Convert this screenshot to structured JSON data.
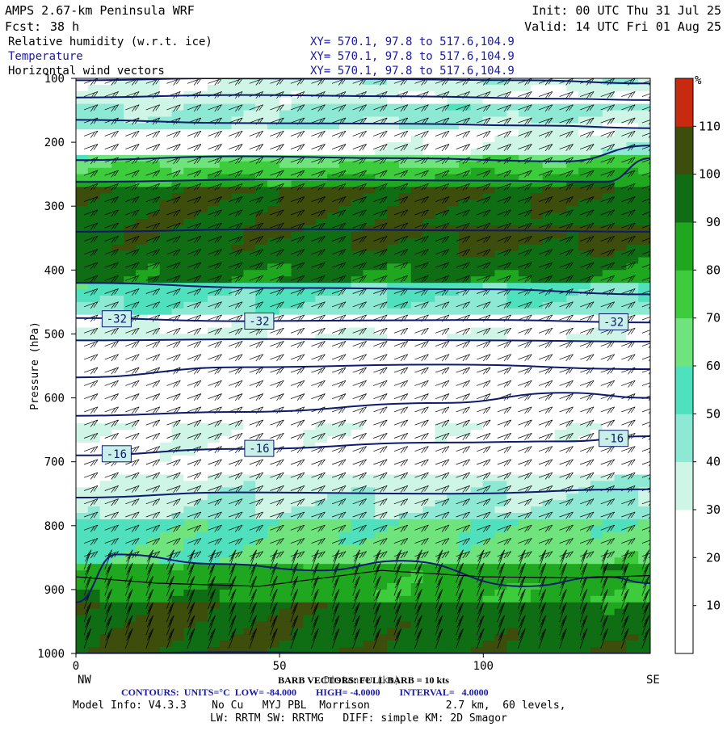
{
  "header": {
    "title": "AMPS 2.67-km Peninsula WRF",
    "fcst_label": "Fcst:",
    "fcst_value": "38 h",
    "init": "Init: 00 UTC Thu 31 Jul 25",
    "valid": "Valid: 14 UTC Fri 01 Aug 25"
  },
  "fields": [
    {
      "name": "Relative humidity (w.r.t. ice)",
      "xy": "XY= 570.1, 97.8 to 517.6,104.9",
      "color": "#000000"
    },
    {
      "name": "Temperature",
      "xy": "XY= 570.1, 97.8 to 517.6,104.9",
      "color": "#1a1aa6"
    },
    {
      "name": "Horizontal wind vectors",
      "xy": "XY= 570.1, 97.8 to 517.6,104.9",
      "color": "#000000"
    }
  ],
  "footer": {
    "left_end": "NW",
    "right_end": "SE",
    "barb_label": "BARB VECTORS: FULL BARB = 10 kts",
    "xaxis_title": "Distance (km)",
    "contours_label": "CONTOURS:  UNITS=°C  LOW= -84.000        HIGH= -4.0000        INTERVAL=   4.0000",
    "model_info": "Model Info: V4.3.3    No Cu   MYJ PBL  Morrison            2.7 km,  60 levels,",
    "physics": "LW: RRTM SW: RRTMG   DIFF: simple KM: 2D Smagor"
  },
  "colors": {
    "temperature_contour": "#0d1a6e",
    "frame": "#000000"
  },
  "chart_data": {
    "type": "heatmap",
    "title": "Relative humidity (w.r.t. ice)",
    "xlabel": "",
    "ylabel": "Pressure (hPa)",
    "x_range": [
      0,
      141
    ],
    "y_range": [
      1000,
      100
    ],
    "x_ticks": [
      0,
      50,
      100
    ],
    "y_ticks": [
      100,
      200,
      300,
      400,
      500,
      600,
      700,
      800,
      900,
      1000
    ],
    "colorbar": {
      "unit": "%",
      "levels": [
        0,
        10,
        20,
        30,
        40,
        50,
        60,
        70,
        80,
        90,
        100,
        110,
        120
      ],
      "tick_labels": [
        "10",
        "20",
        "30",
        "40",
        "50",
        "60",
        "70",
        "80",
        "90",
        "100",
        "110"
      ],
      "colors": [
        "#ffffff",
        "#ffffff",
        "#ffffff",
        "#cff5e6",
        "#8ee9d4",
        "#4fe0bd",
        "#6fe37c",
        "#3ccc3c",
        "#1fa81f",
        "#0f6e14",
        "#3d4d0c",
        "#c82a10"
      ]
    },
    "rh_bands": [
      {
        "range": [
          100,
          135
        ],
        "top": [
          30,
          40
        ],
        "bottom": [
          40,
          20
        ],
        "peak_x": 70
      },
      {
        "range": [
          135,
          175
        ],
        "top": [
          40,
          50
        ],
        "bottom": [
          50,
          30
        ],
        "peak_x": 90
      },
      {
        "range": [
          175,
          215
        ],
        "top": [
          20,
          30
        ],
        "bottom": [
          20,
          40
        ],
        "peak_x": 130
      },
      {
        "range": [
          215,
          265
        ],
        "top": [
          60,
          70
        ],
        "bottom": [
          80,
          95
        ],
        "peak_x": 20
      },
      {
        "range": [
          265,
          330
        ],
        "top": [
          100,
          105
        ],
        "bottom": [
          100,
          95
        ],
        "peak_x": 60
      },
      {
        "range": [
          330,
          420
        ],
        "top": [
          100,
          105
        ],
        "bottom": [
          95,
          85
        ],
        "peak_x": 110
      },
      {
        "range": [
          420,
          470
        ],
        "top": [
          60,
          50
        ],
        "bottom": [
          50,
          40
        ],
        "peak_x": 120
      },
      {
        "range": [
          470,
          510
        ],
        "top": [
          30,
          20
        ],
        "bottom": [
          40,
          30
        ],
        "peak_x": 130
      },
      {
        "range": [
          510,
          640
        ],
        "top": [
          10,
          10
        ],
        "bottom": [
          10,
          10
        ],
        "peak_x": 70
      },
      {
        "range": [
          640,
          720
        ],
        "top": [
          30,
          30
        ],
        "bottom": [
          20,
          25
        ],
        "peak_x": 20
      },
      {
        "range": [
          720,
          790
        ],
        "top": [
          30,
          40
        ],
        "bottom": [
          40,
          50
        ],
        "peak_x": 40
      },
      {
        "range": [
          790,
          860
        ],
        "top": [
          55,
          65
        ],
        "bottom": [
          60,
          70
        ],
        "peak_x": 60
      },
      {
        "range": [
          860,
          920
        ],
        "top": [
          80,
          90
        ],
        "bottom": [
          90,
          80
        ],
        "peak_x": 30
      },
      {
        "range": [
          920,
          1000
        ],
        "top": [
          100,
          95
        ],
        "bottom": [
          100,
          100
        ],
        "peak_x": 20
      }
    ],
    "temperature_contours": [
      {
        "value": -60,
        "label": "",
        "points": [
          [
            0,
            103
          ],
          [
            35,
            100
          ],
          [
            70,
            101
          ],
          [
            110,
            103
          ],
          [
            141,
            108
          ]
        ]
      },
      {
        "value": -56,
        "label": "",
        "points": [
          [
            0,
            130
          ],
          [
            40,
            126
          ],
          [
            80,
            128
          ],
          [
            120,
            132
          ],
          [
            141,
            134
          ]
        ]
      },
      {
        "value": -52,
        "label": "",
        "points": [
          [
            0,
            165
          ],
          [
            40,
            170
          ],
          [
            80,
            171
          ],
          [
            115,
            174
          ],
          [
            141,
            178
          ]
        ]
      },
      {
        "value": -48,
        "label": "",
        "points": [
          [
            0,
            228
          ],
          [
            40,
            222
          ],
          [
            80,
            225
          ],
          [
            120,
            230
          ],
          [
            141,
            205
          ]
        ]
      },
      {
        "value": -44,
        "label": "",
        "points": [
          [
            0,
            262
          ],
          [
            50,
            258
          ],
          [
            100,
            260
          ],
          [
            130,
            262
          ],
          [
            141,
            225
          ]
        ]
      },
      {
        "value": -40,
        "label": "",
        "points": [
          [
            0,
            340
          ],
          [
            50,
            336
          ],
          [
            100,
            338
          ],
          [
            141,
            340
          ]
        ]
      },
      {
        "value": -36,
        "label": "",
        "points": [
          [
            0,
            420
          ],
          [
            50,
            428
          ],
          [
            100,
            430
          ],
          [
            141,
            438
          ]
        ]
      },
      {
        "value": -32,
        "label": "-32",
        "points": [
          [
            0,
            475
          ],
          [
            40,
            480
          ],
          [
            100,
            478
          ],
          [
            141,
            482
          ]
        ]
      },
      {
        "value": -28,
        "label": "",
        "points": [
          [
            0,
            510
          ],
          [
            50,
            508
          ],
          [
            100,
            510
          ],
          [
            141,
            512
          ]
        ]
      },
      {
        "value": -24,
        "label": "",
        "points": [
          [
            0,
            568
          ],
          [
            40,
            552
          ],
          [
            90,
            548
          ],
          [
            141,
            555
          ]
        ]
      },
      {
        "value": -20,
        "label": "",
        "points": [
          [
            0,
            628
          ],
          [
            40,
            622
          ],
          [
            90,
            608
          ],
          [
            120,
            592
          ],
          [
            141,
            600
          ]
        ]
      },
      {
        "value": -16,
        "label": "-16",
        "points": [
          [
            0,
            690
          ],
          [
            40,
            680
          ],
          [
            90,
            670
          ],
          [
            120,
            668
          ],
          [
            141,
            660
          ]
        ]
      },
      {
        "value": -12,
        "label": "",
        "points": [
          [
            0,
            756
          ],
          [
            40,
            748
          ],
          [
            90,
            750
          ],
          [
            141,
            743
          ]
        ]
      },
      {
        "value": -8,
        "label": "",
        "points": [
          [
            0,
            920
          ],
          [
            10,
            845
          ],
          [
            35,
            860
          ],
          [
            60,
            870
          ],
          [
            80,
            855
          ],
          [
            110,
            895
          ],
          [
            130,
            880
          ],
          [
            141,
            890
          ]
        ]
      },
      {
        "value": -4,
        "label": "",
        "points": [
          [
            0,
            1000
          ],
          [
            40,
            998
          ],
          [
            100,
            1000
          ],
          [
            141,
            1000
          ]
        ]
      }
    ],
    "terrain_line": [
      [
        0,
        880
      ],
      [
        20,
        890
      ],
      [
        45,
        895
      ],
      [
        75,
        870
      ],
      [
        100,
        880
      ],
      [
        125,
        882
      ],
      [
        141,
        878
      ]
    ]
  }
}
